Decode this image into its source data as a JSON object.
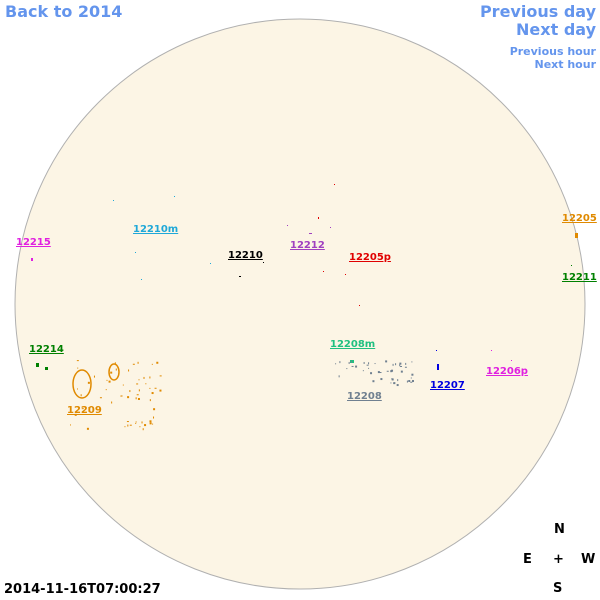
{
  "navigation": {
    "back": "Back to 2014",
    "previous_day": "Previous day",
    "next_day": "Next day",
    "previous_hour": "Previous hour",
    "next_hour": "Next hour"
  },
  "regions": [
    {
      "label": "12215",
      "color": "#e020e0"
    },
    {
      "label": "12210m",
      "color": "#1fa8d8"
    },
    {
      "label": "12210",
      "color": "#000000"
    },
    {
      "label": "12212",
      "color": "#a040c0"
    },
    {
      "label": "12205p",
      "color": "#e00000"
    },
    {
      "label": "12205",
      "color": "#e08a00"
    },
    {
      "label": "12211",
      "color": "#008000"
    },
    {
      "label": "12214",
      "color": "#008000"
    },
    {
      "label": "12209",
      "color": "#e08a00"
    },
    {
      "label": "12208m",
      "color": "#20c080"
    },
    {
      "label": "12208",
      "color": "#708090"
    },
    {
      "label": "12207",
      "color": "#0000e0"
    },
    {
      "label": "12206p",
      "color": "#e020e0"
    }
  ],
  "timestamp": "2014-11-16T07:00:27",
  "compass": {
    "north": "N",
    "east": "E",
    "center": "+",
    "west": "W",
    "south": "S"
  }
}
